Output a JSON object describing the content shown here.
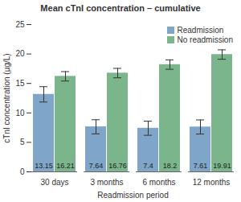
{
  "chart_data": {
    "type": "bar",
    "title": "Mean cTnI concentration – cumulative",
    "x_label": "Readmission period",
    "y_label": "cTnI concentration (µg/L)",
    "categories": [
      "30 days",
      "3 months",
      "6 months",
      "12 months"
    ],
    "series": [
      {
        "name": "Readmission",
        "color": "#7fa6c8",
        "values": [
          13.15,
          7.64,
          7.4,
          7.61
        ],
        "errors": [
          1.3,
          1.2,
          1.2,
          1.2
        ]
      },
      {
        "name": "No readmission",
        "color": "#7bb58b",
        "values": [
          16.21,
          16.76,
          18.2,
          19.91
        ],
        "errors": [
          0.8,
          0.8,
          0.8,
          0.8
        ]
      }
    ],
    "ylim": [
      0,
      25
    ],
    "yticks": [
      0,
      5,
      10,
      15,
      20,
      25
    ],
    "grid": false,
    "legend": "upper right",
    "data_labels": true
  }
}
